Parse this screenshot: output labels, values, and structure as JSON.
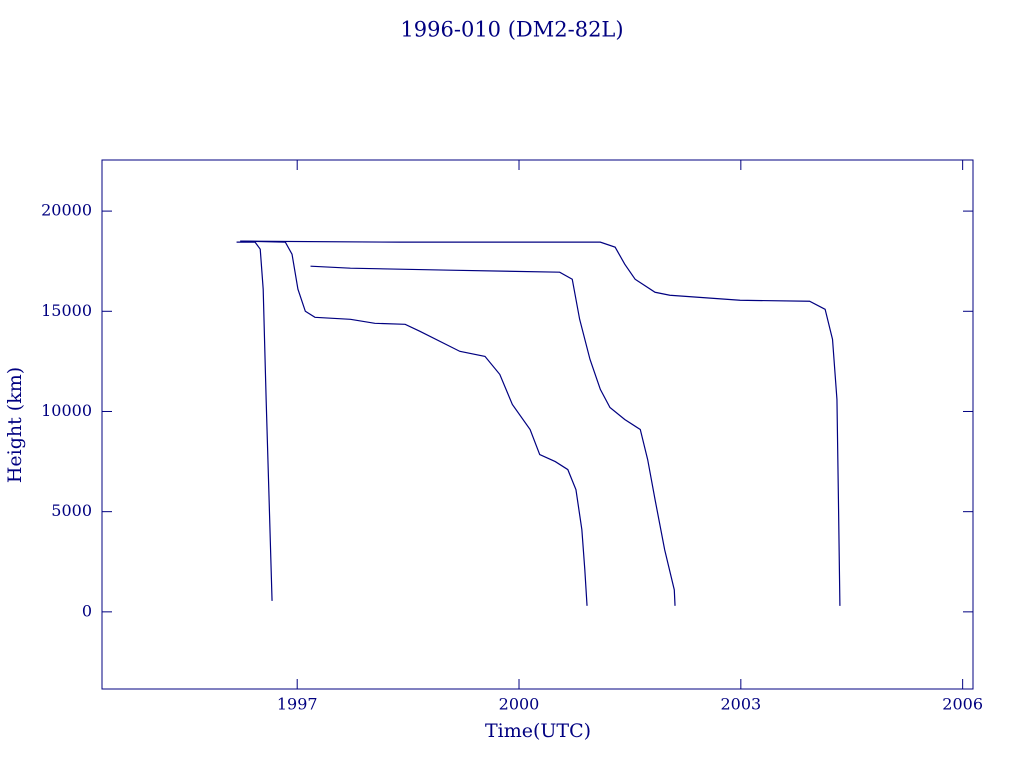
{
  "chart_data": {
    "type": "line",
    "title": "1996-010 (DM2-82L)",
    "x_label": "Time(UTC)",
    "y_label": "Height (km)",
    "color": "#000080",
    "grid": false,
    "xlim": [
      1994.36,
      2006.14
    ],
    "xticks": [
      1997,
      2000,
      2003,
      2006
    ],
    "ylim": [
      -3850,
      22550
    ],
    "yticks": [
      0,
      5000,
      10000,
      15000,
      20000
    ],
    "series": [
      {
        "color": "#000080",
        "x": [
          1996.18,
          1996.43,
          1996.5,
          1996.54,
          1996.58,
          1996.62,
          1996.66
        ],
        "values": [
          18450,
          18450,
          18100,
          16100,
          10600,
          5600,
          550
        ]
      },
      {
        "color": "#000080",
        "x": [
          1996.23,
          1996.84,
          1996.93,
          1997.01,
          1997.11,
          1997.24,
          1997.72,
          1998.05,
          1998.46,
          1998.66,
          1999.2,
          1999.54,
          1999.74,
          1999.91,
          2000.15,
          2000.28,
          2000.49,
          2000.66,
          2000.77,
          2000.85,
          2000.89,
          2000.92
        ],
        "values": [
          18500,
          18450,
          17850,
          16100,
          15000,
          14700,
          14600,
          14400,
          14350,
          14000,
          13000,
          12750,
          11850,
          10350,
          9100,
          7850,
          7500,
          7100,
          6100,
          4100,
          2100,
          300
        ]
      },
      {
        "color": "#000080",
        "x": [
          1997.18,
          1997.72,
          1999.07,
          2000.55,
          2000.72,
          2000.82,
          2000.96,
          2001.1,
          2001.23,
          2001.43,
          2001.64,
          2001.74,
          2001.84,
          2001.97,
          2002.1,
          2002.11
        ],
        "values": [
          17250,
          17150,
          17050,
          16950,
          16600,
          14600,
          12600,
          11100,
          10200,
          9600,
          9100,
          7600,
          5600,
          3100,
          1100,
          300
        ]
      },
      {
        "color": "#000080",
        "x": [
          1996.23,
          1998.39,
          2001.1,
          2001.3,
          2001.43,
          2001.57,
          2001.84,
          2002.04,
          2002.99,
          2003.93,
          2004.14,
          2004.24,
          2004.3,
          2004.32,
          2004.34
        ],
        "values": [
          18500,
          18450,
          18450,
          18200,
          17350,
          16600,
          15950,
          15800,
          15550,
          15500,
          15100,
          13600,
          10600,
          5600,
          300
        ]
      }
    ]
  }
}
